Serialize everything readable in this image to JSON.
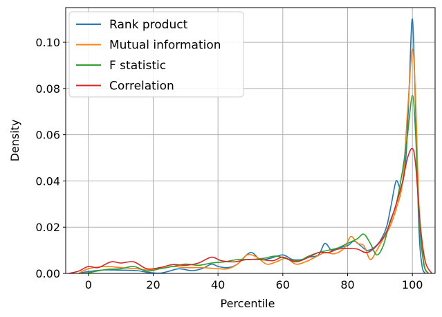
{
  "chart_data": {
    "type": "line",
    "xlabel": "Percentile",
    "ylabel": "Density",
    "xlim": [
      -7,
      107
    ],
    "ylim": [
      0,
      0.115
    ],
    "xticks": [
      0,
      20,
      40,
      60,
      80,
      100
    ],
    "yticks": [
      0.0,
      0.02,
      0.04,
      0.06,
      0.08,
      0.1
    ],
    "ytick_labels": [
      "0.00",
      "0.02",
      "0.04",
      "0.06",
      "0.08",
      "0.10"
    ],
    "grid": true,
    "legend_position": "top-left",
    "series": [
      {
        "name": "Rank product",
        "color": "#1f77b4",
        "points": [
          [
            -3,
            0
          ],
          [
            0,
            0.0008
          ],
          [
            5,
            0.0015
          ],
          [
            10,
            0.0014
          ],
          [
            15,
            0.0012
          ],
          [
            18,
            0.0005
          ],
          [
            22,
            0.0001
          ],
          [
            25,
            0.001
          ],
          [
            28,
            0.002
          ],
          [
            32,
            0.0012
          ],
          [
            35,
            0.002
          ],
          [
            38,
            0.004
          ],
          [
            40,
            0.003
          ],
          [
            43,
            0.0025
          ],
          [
            46,
            0.004
          ],
          [
            50,
            0.009
          ],
          [
            53,
            0.006
          ],
          [
            56,
            0.0065
          ],
          [
            60,
            0.008
          ],
          [
            63,
            0.006
          ],
          [
            66,
            0.006
          ],
          [
            68,
            0.007
          ],
          [
            71,
            0.008
          ],
          [
            73,
            0.013
          ],
          [
            75,
            0.01
          ],
          [
            77,
            0.011
          ],
          [
            80,
            0.012
          ],
          [
            82,
            0.014
          ],
          [
            84,
            0.012
          ],
          [
            86,
            0.01
          ],
          [
            88,
            0.011
          ],
          [
            90,
            0.014
          ],
          [
            92,
            0.02
          ],
          [
            93.5,
            0.03
          ],
          [
            95,
            0.04
          ],
          [
            96.5,
            0.037
          ],
          [
            98,
            0.05
          ],
          [
            99,
            0.08
          ],
          [
            100,
            0.11
          ],
          [
            101,
            0.07
          ],
          [
            102,
            0.02
          ],
          [
            103,
            0.003
          ],
          [
            104,
            0
          ]
        ]
      },
      {
        "name": "Mutual information",
        "color": "#ff7f0e",
        "points": [
          [
            -3,
            0
          ],
          [
            0,
            0.002
          ],
          [
            5,
            0.003
          ],
          [
            10,
            0.0025
          ],
          [
            15,
            0.002
          ],
          [
            18,
            0.0015
          ],
          [
            22,
            0.002
          ],
          [
            26,
            0.003
          ],
          [
            30,
            0.0025
          ],
          [
            35,
            0.0025
          ],
          [
            40,
            0.002
          ],
          [
            43,
            0.002
          ],
          [
            46,
            0.004
          ],
          [
            49,
            0.008
          ],
          [
            52,
            0.007
          ],
          [
            55,
            0.004
          ],
          [
            58,
            0.005
          ],
          [
            61,
            0.0065
          ],
          [
            64,
            0.004
          ],
          [
            67,
            0.005
          ],
          [
            70,
            0.007
          ],
          [
            73,
            0.009
          ],
          [
            76,
            0.0085
          ],
          [
            79,
            0.011
          ],
          [
            81,
            0.016
          ],
          [
            83,
            0.013
          ],
          [
            85,
            0.012
          ],
          [
            87,
            0.006
          ],
          [
            89,
            0.01
          ],
          [
            91,
            0.015
          ],
          [
            93,
            0.02
          ],
          [
            95,
            0.028
          ],
          [
            97,
            0.04
          ],
          [
            98.5,
            0.07
          ],
          [
            100,
            0.097
          ],
          [
            101,
            0.075
          ],
          [
            102,
            0.03
          ],
          [
            103.5,
            0.005
          ],
          [
            105,
            0
          ]
        ]
      },
      {
        "name": "F statistic",
        "color": "#2ca02c",
        "points": [
          [
            -1,
            0
          ],
          [
            2,
            0.0008
          ],
          [
            6,
            0.0018
          ],
          [
            10,
            0.002
          ],
          [
            14,
            0.003
          ],
          [
            18,
            0.001
          ],
          [
            22,
            0.002
          ],
          [
            26,
            0.003
          ],
          [
            30,
            0.004
          ],
          [
            34,
            0.0035
          ],
          [
            38,
            0.0045
          ],
          [
            42,
            0.005
          ],
          [
            46,
            0.006
          ],
          [
            50,
            0.006
          ],
          [
            54,
            0.0065
          ],
          [
            58,
            0.0075
          ],
          [
            62,
            0.006
          ],
          [
            65,
            0.0055
          ],
          [
            68,
            0.0075
          ],
          [
            71,
            0.009
          ],
          [
            74,
            0.01
          ],
          [
            77,
            0.011
          ],
          [
            80,
            0.013
          ],
          [
            83,
            0.015
          ],
          [
            85,
            0.017
          ],
          [
            87,
            0.013
          ],
          [
            89,
            0.008
          ],
          [
            91,
            0.012
          ],
          [
            93,
            0.022
          ],
          [
            95,
            0.03
          ],
          [
            97,
            0.045
          ],
          [
            98.5,
            0.06
          ],
          [
            100,
            0.077
          ],
          [
            101,
            0.06
          ],
          [
            102,
            0.025
          ],
          [
            103.5,
            0.004
          ],
          [
            105,
            0
          ]
        ]
      },
      {
        "name": "Correlation",
        "color": "#d62728",
        "points": [
          [
            -6,
            0
          ],
          [
            -3,
            0.001
          ],
          [
            0,
            0.003
          ],
          [
            3,
            0.0025
          ],
          [
            7,
            0.005
          ],
          [
            10,
            0.0045
          ],
          [
            14,
            0.005
          ],
          [
            18,
            0.002
          ],
          [
            22,
            0.0025
          ],
          [
            26,
            0.0038
          ],
          [
            30,
            0.0035
          ],
          [
            34,
            0.0045
          ],
          [
            38,
            0.007
          ],
          [
            41,
            0.0055
          ],
          [
            45,
            0.005
          ],
          [
            49,
            0.006
          ],
          [
            53,
            0.006
          ],
          [
            57,
            0.0055
          ],
          [
            60,
            0.007
          ],
          [
            64,
            0.005
          ],
          [
            68,
            0.007
          ],
          [
            71,
            0.009
          ],
          [
            74,
            0.009
          ],
          [
            77,
            0.0105
          ],
          [
            80,
            0.0108
          ],
          [
            83,
            0.0105
          ],
          [
            86,
            0.009
          ],
          [
            89,
            0.012
          ],
          [
            92,
            0.018
          ],
          [
            95,
            0.03
          ],
          [
            97,
            0.04
          ],
          [
            98.5,
            0.05
          ],
          [
            100,
            0.054
          ],
          [
            101,
            0.047
          ],
          [
            102.5,
            0.02
          ],
          [
            104,
            0.005
          ],
          [
            106,
            0
          ]
        ]
      }
    ]
  }
}
